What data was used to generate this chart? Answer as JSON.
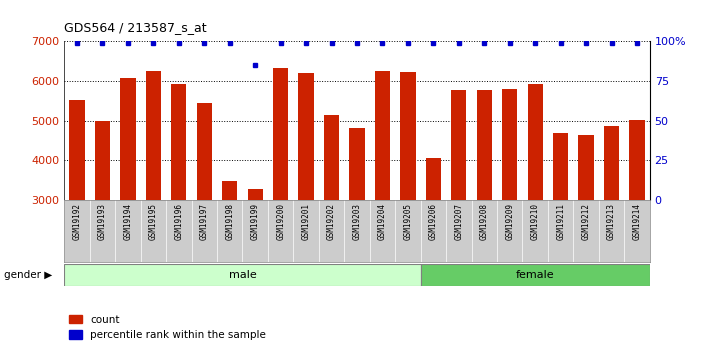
{
  "title": "GDS564 / 213587_s_at",
  "samples": [
    "GSM19192",
    "GSM19193",
    "GSM19194",
    "GSM19195",
    "GSM19196",
    "GSM19197",
    "GSM19198",
    "GSM19199",
    "GSM19200",
    "GSM19201",
    "GSM19202",
    "GSM19203",
    "GSM19204",
    "GSM19205",
    "GSM19206",
    "GSM19207",
    "GSM19208",
    "GSM19209",
    "GSM19210",
    "GSM19211",
    "GSM19212",
    "GSM19213",
    "GSM19214"
  ],
  "counts": [
    5530,
    5000,
    6080,
    6250,
    5930,
    5440,
    3480,
    3270,
    6340,
    6210,
    5140,
    4820,
    6250,
    6220,
    4050,
    5780,
    5780,
    5790,
    5920,
    4680,
    4640,
    4870,
    5020
  ],
  "percentile_ranks": [
    99,
    99,
    99,
    99,
    99,
    99,
    99,
    85,
    99,
    99,
    99,
    99,
    99,
    99,
    99,
    99,
    99,
    99,
    99,
    99,
    99,
    99,
    99
  ],
  "gender_split": 14,
  "male_color": "#ccffcc",
  "female_color": "#66cc66",
  "bar_color": "#cc2200",
  "dot_color": "#0000cc",
  "ylim_left": [
    3000,
    7000
  ],
  "yticks_left": [
    3000,
    4000,
    5000,
    6000,
    7000
  ],
  "ylim_right": [
    0,
    100
  ],
  "yticks_right": [
    0,
    25,
    50,
    75,
    100
  ],
  "ylabel_right_labels": [
    "0",
    "25",
    "50",
    "75",
    "100%"
  ],
  "plot_bg_color": "#ffffff",
  "xtick_bg_color": "#cccccc",
  "left_label_color": "#cc2200",
  "right_label_color": "#0000cc"
}
